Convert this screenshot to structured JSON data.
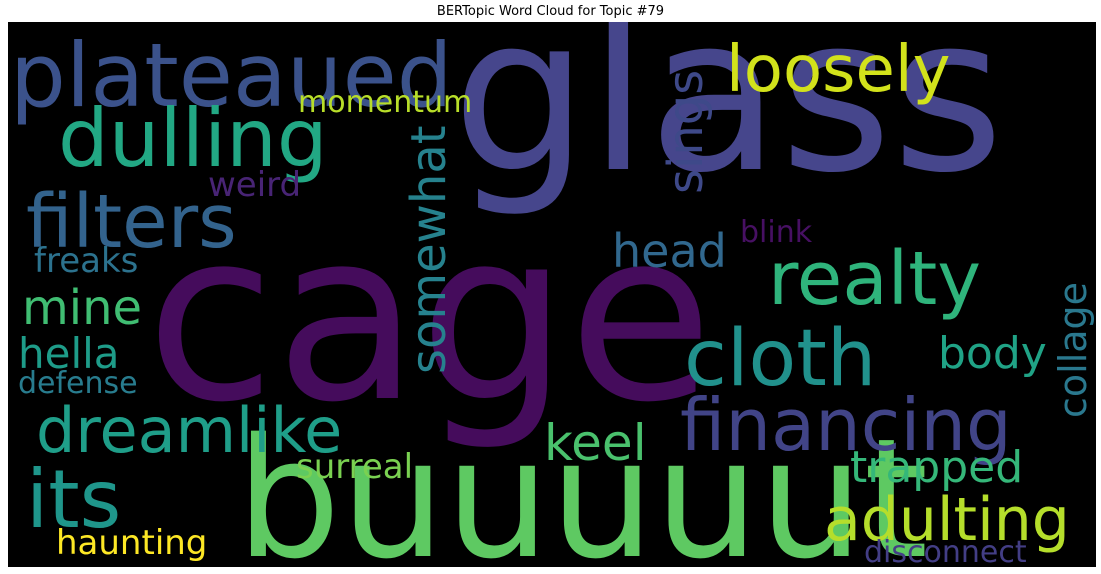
{
  "title": "BERTopic Word Cloud for Topic #79",
  "words": {
    "glass": {
      "text": "glass",
      "color": "#46468c"
    },
    "cage": {
      "text": "cage",
      "color": "#450c5c"
    },
    "buuuuut": {
      "text": "buuuuut",
      "color": "#5ec962"
    },
    "plateaued": {
      "text": "plateaued",
      "color": "#3b528b"
    },
    "dulling": {
      "text": "dulling",
      "color": "#22a884"
    },
    "filters": {
      "text": "filters",
      "color": "#33638d"
    },
    "loosely": {
      "text": "loosely",
      "color": "#d2e21b"
    },
    "realty": {
      "text": "realty",
      "color": "#2fb47c"
    },
    "cloth": {
      "text": "cloth",
      "color": "#21918c"
    },
    "financing": {
      "text": "financing",
      "color": "#414487"
    },
    "dreamlike": {
      "text": "dreamlike",
      "color": "#1f9e89"
    },
    "its": {
      "text": "its",
      "color": "#1f968b"
    },
    "adulting": {
      "text": "adulting",
      "color": "#b5de2b"
    },
    "somewhat": {
      "text": "somewhat",
      "color": "#26828e"
    },
    "sings": {
      "text": "sings",
      "color": "#3e4989"
    },
    "collage": {
      "text": "collage",
      "color": "#2a788e"
    },
    "momentum": {
      "text": "momentum",
      "color": "#b8de29"
    },
    "head": {
      "text": "head",
      "color": "#31688e"
    },
    "keel": {
      "text": "keel",
      "color": "#4ac16d"
    },
    "trapped": {
      "text": "trapped",
      "color": "#35b779"
    },
    "body": {
      "text": "body",
      "color": "#20a386"
    },
    "mine": {
      "text": "mine",
      "color": "#40bd72"
    },
    "hella": {
      "text": "hella",
      "color": "#1e9c89"
    },
    "freaks": {
      "text": "freaks",
      "color": "#2c728e"
    },
    "defense": {
      "text": "defense",
      "color": "#287c8e"
    },
    "weird": {
      "text": "weird",
      "color": "#482475"
    },
    "blink": {
      "text": "blink",
      "color": "#471063"
    },
    "surreal": {
      "text": "surreal",
      "color": "#7ad151"
    },
    "haunting": {
      "text": "haunting",
      "color": "#fde725"
    },
    "disconnect": {
      "text": "disconnect",
      "color": "#433e85"
    }
  }
}
